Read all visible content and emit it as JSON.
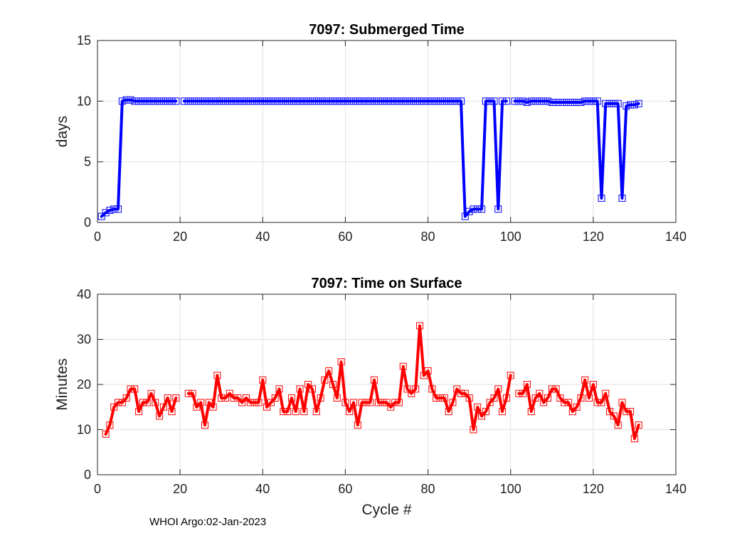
{
  "colors": {
    "top_series": "#0000ff",
    "bottom_series": "#ff0000",
    "grid": "#e2e2e2",
    "axis": "#262626"
  },
  "footer": "WHOI Argo:02-Jan-2023",
  "chart_data": [
    {
      "type": "line",
      "title": "7097: Submerged Time",
      "xlabel": "",
      "ylabel": "days",
      "xlim": [
        0,
        140
      ],
      "ylim": [
        0,
        15
      ],
      "xticks": [
        0,
        20,
        40,
        60,
        80,
        100,
        120,
        140
      ],
      "yticks": [
        0,
        5,
        10,
        15
      ],
      "grid": true,
      "series": [
        {
          "name": "Submerged Time",
          "color": "#0000ff",
          "marker": "square",
          "points": [
            [
              1,
              0.5
            ],
            [
              2,
              0.8
            ],
            [
              3,
              1.0
            ],
            [
              4,
              1.1
            ],
            [
              5,
              1.1
            ],
            [
              6,
              10.0
            ],
            [
              7,
              10.1
            ],
            [
              8,
              10.1
            ],
            [
              9,
              10.0
            ],
            [
              10,
              10.0
            ],
            [
              11,
              10.0
            ],
            [
              12,
              10.0
            ],
            [
              13,
              10.0
            ],
            [
              14,
              10.0
            ],
            [
              15,
              10.0
            ],
            [
              16,
              10.0
            ],
            [
              17,
              10.0
            ],
            [
              18,
              10.0
            ],
            [
              19,
              10.0
            ],
            [
              20,
              null
            ],
            [
              21,
              10.0
            ],
            [
              22,
              10.0
            ],
            [
              23,
              10.0
            ],
            [
              24,
              10.0
            ],
            [
              25,
              10.0
            ],
            [
              26,
              10.0
            ],
            [
              27,
              10.0
            ],
            [
              28,
              10.0
            ],
            [
              29,
              10.0
            ],
            [
              30,
              10.0
            ],
            [
              31,
              10.0
            ],
            [
              32,
              10.0
            ],
            [
              33,
              10.0
            ],
            [
              34,
              10.0
            ],
            [
              35,
              10.0
            ],
            [
              36,
              10.0
            ],
            [
              37,
              10.0
            ],
            [
              38,
              10.0
            ],
            [
              39,
              10.0
            ],
            [
              40,
              10.0
            ],
            [
              41,
              10.0
            ],
            [
              42,
              10.0
            ],
            [
              43,
              10.0
            ],
            [
              44,
              10.0
            ],
            [
              45,
              10.0
            ],
            [
              46,
              10.0
            ],
            [
              47,
              10.0
            ],
            [
              48,
              10.0
            ],
            [
              49,
              10.0
            ],
            [
              50,
              10.0
            ],
            [
              51,
              10.0
            ],
            [
              52,
              10.0
            ],
            [
              53,
              10.0
            ],
            [
              54,
              10.0
            ],
            [
              55,
              10.0
            ],
            [
              56,
              10.0
            ],
            [
              57,
              10.0
            ],
            [
              58,
              10.0
            ],
            [
              59,
              10.0
            ],
            [
              60,
              10.0
            ],
            [
              61,
              10.0
            ],
            [
              62,
              10.0
            ],
            [
              63,
              10.0
            ],
            [
              64,
              10.0
            ],
            [
              65,
              10.0
            ],
            [
              66,
              10.0
            ],
            [
              67,
              10.0
            ],
            [
              68,
              10.0
            ],
            [
              69,
              10.0
            ],
            [
              70,
              10.0
            ],
            [
              71,
              10.0
            ],
            [
              72,
              10.0
            ],
            [
              73,
              10.0
            ],
            [
              74,
              10.0
            ],
            [
              75,
              10.0
            ],
            [
              76,
              10.0
            ],
            [
              77,
              10.0
            ],
            [
              78,
              10.0
            ],
            [
              79,
              10.0
            ],
            [
              80,
              10.0
            ],
            [
              81,
              10.0
            ],
            [
              82,
              10.0
            ],
            [
              83,
              10.0
            ],
            [
              84,
              10.0
            ],
            [
              85,
              10.0
            ],
            [
              86,
              10.0
            ],
            [
              87,
              10.0
            ],
            [
              88,
              10.0
            ],
            [
              89,
              0.5
            ],
            [
              90,
              0.9
            ],
            [
              91,
              1.1
            ],
            [
              92,
              1.1
            ],
            [
              93,
              1.1
            ],
            [
              94,
              10.0
            ],
            [
              95,
              10.0
            ],
            [
              96,
              10.0
            ],
            [
              97,
              1.1
            ],
            [
              98,
              10.0
            ],
            [
              99,
              10.0
            ],
            [
              100,
              null
            ],
            [
              101,
              10.0
            ],
            [
              102,
              10.0
            ],
            [
              103,
              10.0
            ],
            [
              104,
              9.9
            ],
            [
              105,
              10.0
            ],
            [
              106,
              10.0
            ],
            [
              107,
              10.0
            ],
            [
              108,
              10.0
            ],
            [
              109,
              10.0
            ],
            [
              110,
              9.9
            ],
            [
              111,
              9.9
            ],
            [
              112,
              9.9
            ],
            [
              113,
              9.9
            ],
            [
              114,
              9.9
            ],
            [
              115,
              9.9
            ],
            [
              116,
              9.9
            ],
            [
              117,
              9.9
            ],
            [
              118,
              10.0
            ],
            [
              119,
              10.0
            ],
            [
              120,
              10.0
            ],
            [
              121,
              10.0
            ],
            [
              122,
              2.0
            ],
            [
              123,
              9.8
            ],
            [
              124,
              9.8
            ],
            [
              125,
              9.8
            ],
            [
              126,
              9.8
            ],
            [
              127,
              2.0
            ],
            [
              128,
              9.6
            ],
            [
              129,
              9.7
            ],
            [
              130,
              9.7
            ],
            [
              131,
              9.8
            ]
          ]
        }
      ]
    },
    {
      "type": "line",
      "title": "7097: Time on Surface",
      "xlabel": "Cycle #",
      "ylabel": "Minutes",
      "xlim": [
        0,
        140
      ],
      "ylim": [
        0,
        40
      ],
      "xticks": [
        0,
        20,
        40,
        60,
        80,
        100,
        120,
        140
      ],
      "yticks": [
        0,
        10,
        20,
        30,
        40
      ],
      "grid": true,
      "series": [
        {
          "name": "Time on Surface",
          "color": "#ff0000",
          "marker": "square",
          "points": [
            [
              2,
              9
            ],
            [
              3,
              11
            ],
            [
              4,
              15
            ],
            [
              5,
              16
            ],
            [
              6,
              16
            ],
            [
              7,
              17
            ],
            [
              8,
              19
            ],
            [
              9,
              19
            ],
            [
              10,
              14
            ],
            [
              11,
              16
            ],
            [
              12,
              16
            ],
            [
              13,
              18
            ],
            [
              14,
              16
            ],
            [
              15,
              13
            ],
            [
              16,
              15
            ],
            [
              17,
              17
            ],
            [
              18,
              14
            ],
            [
              19,
              17
            ],
            [
              20,
              null
            ],
            [
              21,
              null
            ],
            [
              22,
              18
            ],
            [
              23,
              18
            ],
            [
              24,
              15
            ],
            [
              25,
              16
            ],
            [
              26,
              11
            ],
            [
              27,
              16
            ],
            [
              28,
              15
            ],
            [
              29,
              22
            ],
            [
              30,
              17
            ],
            [
              31,
              17
            ],
            [
              32,
              18
            ],
            [
              33,
              17
            ],
            [
              34,
              17
            ],
            [
              35,
              16
            ],
            [
              36,
              17
            ],
            [
              37,
              16
            ],
            [
              38,
              16
            ],
            [
              39,
              16
            ],
            [
              40,
              21
            ],
            [
              41,
              15
            ],
            [
              42,
              16
            ],
            [
              43,
              17
            ],
            [
              44,
              19
            ],
            [
              45,
              14
            ],
            [
              46,
              14
            ],
            [
              47,
              17
            ],
            [
              48,
              14
            ],
            [
              49,
              19
            ],
            [
              50,
              14
            ],
            [
              51,
              20
            ],
            [
              52,
              19
            ],
            [
              53,
              14
            ],
            [
              54,
              17
            ],
            [
              55,
              21
            ],
            [
              56,
              23
            ],
            [
              57,
              20
            ],
            [
              58,
              17
            ],
            [
              59,
              25
            ],
            [
              60,
              16
            ],
            [
              61,
              14
            ],
            [
              62,
              16
            ],
            [
              63,
              11
            ],
            [
              64,
              16
            ],
            [
              65,
              16
            ],
            [
              66,
              16
            ],
            [
              67,
              21
            ],
            [
              68,
              16
            ],
            [
              69,
              16
            ],
            [
              70,
              16
            ],
            [
              71,
              15
            ],
            [
              72,
              16
            ],
            [
              73,
              16
            ],
            [
              74,
              24
            ],
            [
              75,
              19
            ],
            [
              76,
              18
            ],
            [
              77,
              19
            ],
            [
              78,
              33
            ],
            [
              79,
              22
            ],
            [
              80,
              23
            ],
            [
              81,
              19
            ],
            [
              82,
              17
            ],
            [
              83,
              17
            ],
            [
              84,
              17
            ],
            [
              85,
              14
            ],
            [
              86,
              16
            ],
            [
              87,
              19
            ],
            [
              88,
              18
            ],
            [
              89,
              18
            ],
            [
              90,
              17
            ],
            [
              91,
              10
            ],
            [
              92,
              15
            ],
            [
              93,
              13
            ],
            [
              94,
              14
            ],
            [
              95,
              16
            ],
            [
              96,
              17
            ],
            [
              97,
              19
            ],
            [
              98,
              14
            ],
            [
              99,
              17
            ],
            [
              100,
              22
            ],
            [
              101,
              null
            ],
            [
              102,
              18
            ],
            [
              103,
              18
            ],
            [
              104,
              20
            ],
            [
              105,
              14
            ],
            [
              106,
              17
            ],
            [
              107,
              18
            ],
            [
              108,
              16
            ],
            [
              109,
              17
            ],
            [
              110,
              19
            ],
            [
              111,
              19
            ],
            [
              112,
              17
            ],
            [
              113,
              16
            ],
            [
              114,
              16
            ],
            [
              115,
              14
            ],
            [
              116,
              15
            ],
            [
              117,
              17
            ],
            [
              118,
              21
            ],
            [
              119,
              17
            ],
            [
              120,
              20
            ],
            [
              121,
              16
            ],
            [
              122,
              16
            ],
            [
              123,
              18
            ],
            [
              124,
              14
            ],
            [
              125,
              13
            ],
            [
              126,
              11
            ],
            [
              127,
              16
            ],
            [
              128,
              14
            ],
            [
              129,
              14
            ],
            [
              130,
              8
            ],
            [
              131,
              11
            ]
          ]
        }
      ]
    }
  ]
}
